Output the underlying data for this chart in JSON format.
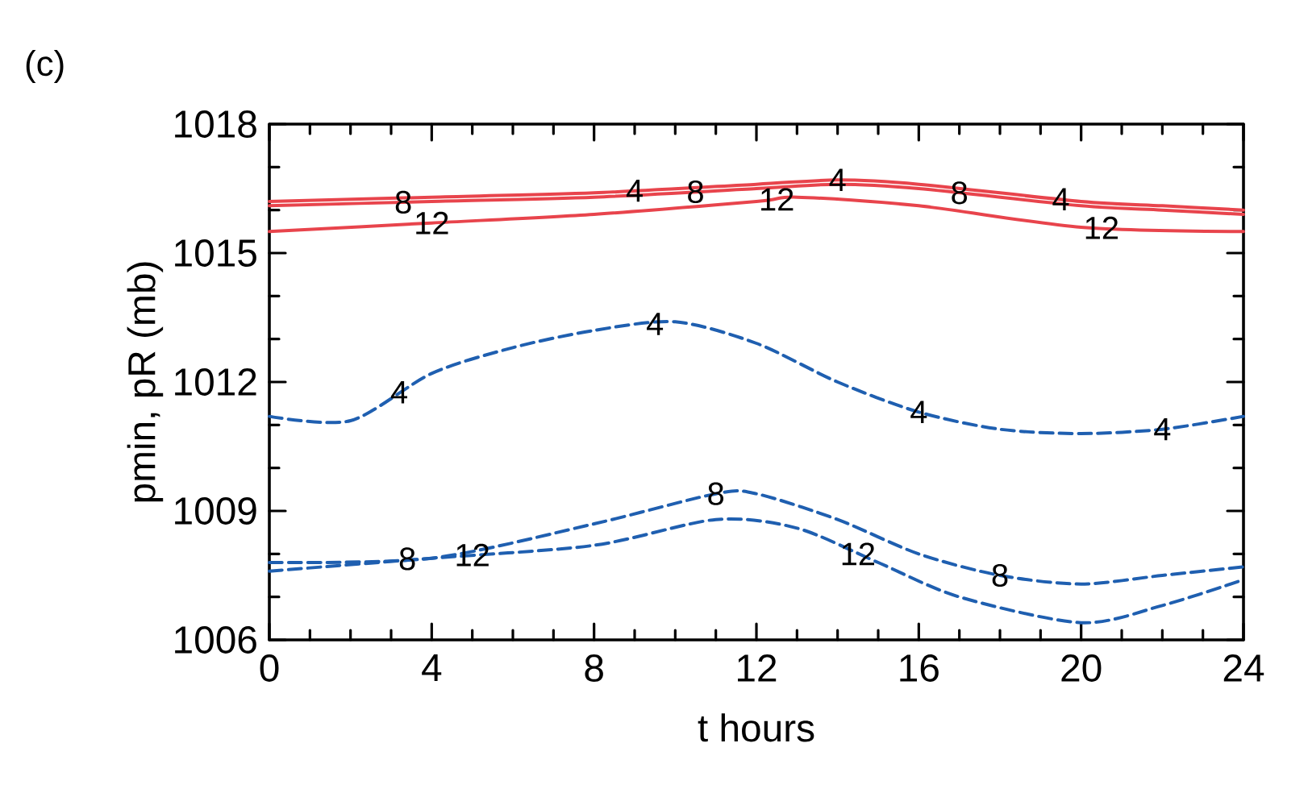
{
  "chart_data": {
    "type": "line",
    "xlabel": "t hours",
    "ylabel": "pmin, pR (mb)",
    "annotations": [
      "(c)"
    ],
    "xlim": [
      0,
      24
    ],
    "xticks": [
      0,
      4,
      8,
      12,
      16,
      20,
      24
    ],
    "ylim": [
      1006,
      1018
    ],
    "yticks": [
      1006,
      1009,
      1012,
      1015,
      1018
    ],
    "grid": false,
    "series": [
      {
        "name": "4",
        "color": "#e8444c",
        "line_style": "solid",
        "x": [
          0,
          4,
          8,
          12,
          14,
          16,
          20,
          22,
          24
        ],
        "values": [
          1016.2,
          1016.3,
          1016.4,
          1016.6,
          1016.7,
          1016.6,
          1016.2,
          1016.1,
          1016.0
        ]
      },
      {
        "name": "8",
        "color": "#e8444c",
        "line_style": "solid",
        "x": [
          0,
          4,
          8,
          12,
          14,
          16,
          20,
          22,
          24
        ],
        "values": [
          1016.1,
          1016.2,
          1016.3,
          1016.5,
          1016.6,
          1016.5,
          1016.1,
          1016.0,
          1015.9
        ]
      },
      {
        "name": "12",
        "color": "#e8444c",
        "line_style": "solid",
        "x": [
          0,
          4,
          8,
          12,
          13,
          16,
          20,
          24
        ],
        "values": [
          1015.5,
          1015.7,
          1015.9,
          1016.2,
          1016.3,
          1016.1,
          1015.6,
          1015.5
        ]
      },
      {
        "name": "4",
        "color": "#1f5fb0",
        "line_style": "dashed",
        "x": [
          0,
          2,
          4,
          6,
          8,
          10,
          12,
          14,
          16,
          18,
          20,
          22,
          24
        ],
        "values": [
          1011.2,
          1011.1,
          1012.2,
          1012.8,
          1013.2,
          1013.4,
          1012.9,
          1012.0,
          1011.3,
          1010.9,
          1010.8,
          1010.9,
          1011.2
        ]
      },
      {
        "name": "8",
        "color": "#1f5fb0",
        "line_style": "dashed",
        "x": [
          0,
          4,
          8,
          11,
          12,
          14,
          16,
          18,
          20,
          22,
          24
        ],
        "values": [
          1007.8,
          1007.9,
          1008.7,
          1009.4,
          1009.4,
          1008.8,
          1008.0,
          1007.5,
          1007.3,
          1007.5,
          1007.7
        ]
      },
      {
        "name": "12",
        "color": "#1f5fb0",
        "line_style": "dashed",
        "x": [
          0,
          4,
          8,
          11,
          13,
          15,
          17,
          20,
          22,
          24
        ],
        "values": [
          1007.6,
          1007.9,
          1008.2,
          1008.8,
          1008.6,
          1007.8,
          1007.0,
          1006.4,
          1006.8,
          1007.4
        ]
      }
    ]
  }
}
